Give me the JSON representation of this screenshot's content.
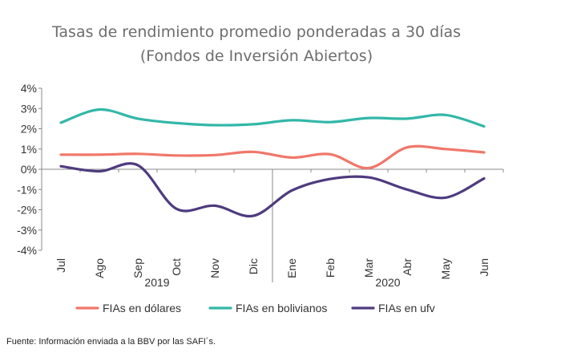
{
  "chart_data": {
    "type": "line",
    "title": "Tasas de rendimiento promedio ponderadas a 30 días",
    "subtitle": "(Fondos de Inversión Abiertos)",
    "categories": [
      "Jul",
      "Ago",
      "Sep",
      "Oct",
      "Nov",
      "Dic",
      "Ene",
      "Feb",
      "Mar",
      "Abr",
      "May",
      "Jun"
    ],
    "year_groups": [
      {
        "label": "2019",
        "from": 0,
        "to": 5
      },
      {
        "label": "2020",
        "from": 6,
        "to": 11
      }
    ],
    "y_ticks": [
      "4%",
      "3%",
      "2%",
      "1%",
      "0%",
      "-1%",
      "-2%",
      "-3%",
      "-4%"
    ],
    "ylim": [
      -4,
      4
    ],
    "grid": false,
    "legend_position": "bottom",
    "series": [
      {
        "name": "FIAs en dólares",
        "color": "#f0776a",
        "values": [
          0.72,
          0.72,
          0.76,
          0.68,
          0.7,
          0.86,
          0.58,
          0.74,
          0.06,
          1.08,
          1.0,
          0.83
        ]
      },
      {
        "name": "FIAs en bolivianos",
        "color": "#33b7a8",
        "values": [
          2.3,
          2.95,
          2.5,
          2.28,
          2.18,
          2.22,
          2.42,
          2.33,
          2.53,
          2.5,
          2.68,
          2.12
        ]
      },
      {
        "name": "FIAs en ufv",
        "color": "#4e3b7f",
        "values": [
          0.15,
          -0.1,
          0.2,
          -1.95,
          -1.8,
          -2.3,
          -1.05,
          -0.48,
          -0.4,
          -1.0,
          -1.4,
          -0.45
        ]
      }
    ]
  },
  "source": "Fuente: Información enviada a la BBV por las SAFI´s."
}
